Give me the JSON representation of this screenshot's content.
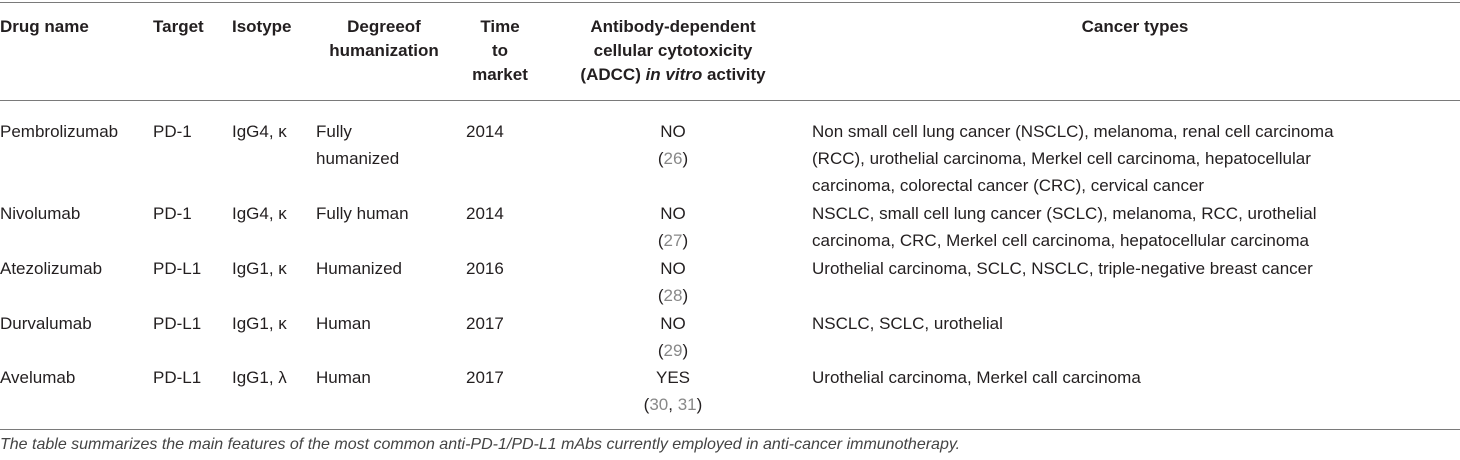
{
  "headers": {
    "drug": "Drug name",
    "target": "Target",
    "isotype": "Isotype",
    "humanization": [
      "Degreeof",
      "humanization"
    ],
    "time": [
      "Time",
      "to",
      "market"
    ],
    "adcc": [
      "Antibody-dependent",
      "cellular cytotoxicity",
      "(ADCC) ",
      "in vitro",
      " activity"
    ],
    "cancer": "Cancer types"
  },
  "rows": [
    {
      "drug": "Pembrolizumab",
      "target": "PD-1",
      "isotype": "IgG4, κ",
      "humanization": [
        "Fully",
        "humanized"
      ],
      "time": "2014",
      "adcc": "NO",
      "refs": [
        "(",
        "26",
        ")"
      ],
      "cancer": [
        "Non small cell lung cancer (NSCLC), melanoma, renal cell carcinoma",
        "(RCC), urothelial carcinoma, Merkel cell carcinoma, hepatocellular",
        "carcinoma, colorectal cancer (CRC), cervical cancer"
      ]
    },
    {
      "drug": "Nivolumab",
      "target": "PD-1",
      "isotype": "IgG4, κ",
      "humanization": [
        "Fully human"
      ],
      "time": "2014",
      "adcc": "NO",
      "refs": [
        "(",
        "27",
        ")"
      ],
      "cancer": [
        "NSCLC, small cell lung cancer (SCLC), melanoma, RCC, urothelial",
        "carcinoma, CRC, Merkel cell carcinoma, hepatocellular carcinoma"
      ]
    },
    {
      "drug": "Atezolizumab",
      "target": "PD-L1",
      "isotype": "IgG1, κ",
      "humanization": [
        "Humanized"
      ],
      "time": "2016",
      "adcc": "NO",
      "refs": [
        "(",
        "28",
        ")"
      ],
      "cancer": [
        "Urothelial carcinoma, SCLC, NSCLC, triple-negative breast cancer"
      ]
    },
    {
      "drug": "Durvalumab",
      "target": "PD-L1",
      "isotype": "IgG1, κ",
      "humanization": [
        "Human"
      ],
      "time": "2017",
      "adcc": "NO",
      "refs": [
        "(",
        "29",
        ")"
      ],
      "cancer": [
        "NSCLC, SCLC, urothelial"
      ]
    },
    {
      "drug": "Avelumab",
      "target": "PD-L1",
      "isotype": "IgG1, λ",
      "humanization": [
        "Human"
      ],
      "time": "2017",
      "adcc": "YES",
      "refs": [
        "(",
        "30",
        ", ",
        "31",
        ")"
      ],
      "cancer": [
        "Urothelial carcinoma, Merkel call carcinoma"
      ]
    }
  ],
  "caption": "The table summarizes the main features of the most common anti-PD-1/PD-L1 mAbs currently employed in anti-cancer immunotherapy."
}
